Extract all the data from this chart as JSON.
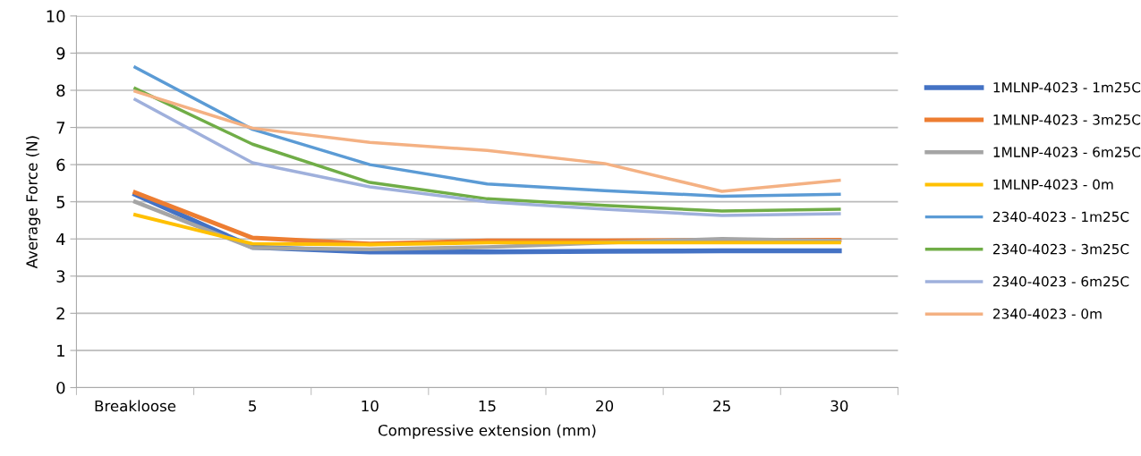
{
  "chart_data": {
    "type": "line",
    "xlabel": "Compressive extension (mm)",
    "ylabel": "Average Force (N)",
    "categories": [
      "Breakloose",
      "5",
      "10",
      "15",
      "20",
      "25",
      "30"
    ],
    "ylim": [
      0,
      10
    ],
    "yticks": [
      0,
      1,
      2,
      3,
      4,
      5,
      6,
      7,
      8,
      9,
      10
    ],
    "grid": "y",
    "legend": "right",
    "marker": "none",
    "line_style": "solid",
    "series": [
      {
        "name": "1MLNP-4023 - 1m25C",
        "color": "#4472c4",
        "values": [
          5.2,
          3.78,
          3.65,
          3.65,
          3.67,
          3.68,
          3.68
        ]
      },
      {
        "name": "1MLNP-4023 - 3m25C",
        "color": "#ed7d31",
        "values": [
          5.25,
          4.03,
          3.87,
          3.95,
          3.95,
          3.97,
          3.97
        ]
      },
      {
        "name": "1MLNP-4023 - 6m25C",
        "color": "#a5a5a5",
        "values": [
          5.0,
          3.76,
          3.72,
          3.78,
          3.9,
          4.0,
          3.95
        ]
      },
      {
        "name": "1MLNP-4023 - 0m",
        "color": "#ffc000",
        "values": [
          4.65,
          3.87,
          3.85,
          3.9,
          3.9,
          3.9,
          3.9
        ]
      },
      {
        "name": "2340-4023 - 1m25C",
        "color": "#5b9bd5",
        "values": [
          8.62,
          6.95,
          6.0,
          5.48,
          5.3,
          5.15,
          5.2
        ]
      },
      {
        "name": "2340-4023 - 3m25C",
        "color": "#70ad47",
        "values": [
          8.05,
          6.55,
          5.52,
          5.08,
          4.9,
          4.75,
          4.8
        ]
      },
      {
        "name": "2340-4023 - 6m25C",
        "color": "#9fb0dc",
        "values": [
          7.75,
          6.05,
          5.4,
          5.0,
          4.8,
          4.63,
          4.68
        ]
      },
      {
        "name": "2340-4023 - 0m",
        "color": "#f4b183",
        "values": [
          7.97,
          6.98,
          6.6,
          6.38,
          6.03,
          5.28,
          5.58
        ]
      }
    ]
  }
}
